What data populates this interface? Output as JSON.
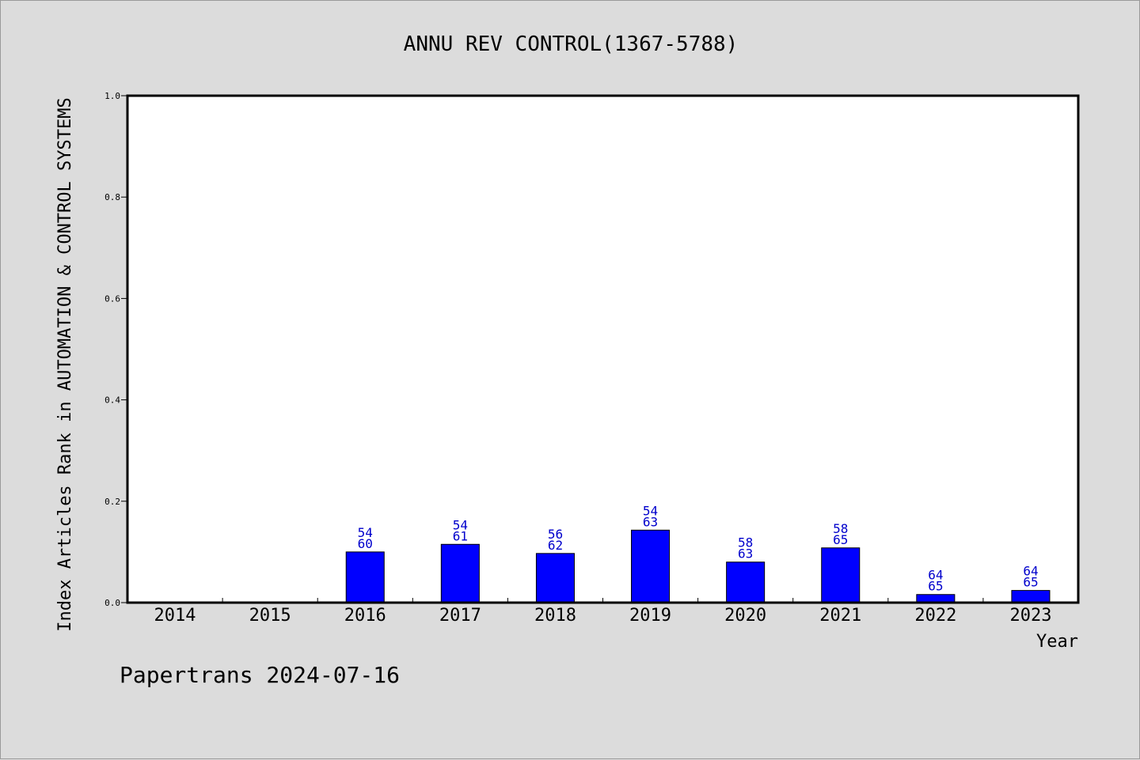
{
  "chart_data": {
    "type": "bar",
    "title": "ANNU REV CONTROL(1367-5788)",
    "xlabel": "Year",
    "ylabel": "Index Articles Rank in AUTOMATION & CONTROL SYSTEMS",
    "ylim": [
      0,
      1.0
    ],
    "yticks": [
      "0.0",
      "0.2",
      "0.4",
      "0.6",
      "0.8",
      "1.0"
    ],
    "categories": [
      "2014",
      "2015",
      "2016",
      "2017",
      "2018",
      "2019",
      "2020",
      "2021",
      "2022",
      "2023"
    ],
    "values": [
      0,
      0,
      0.1,
      0.115,
      0.097,
      0.143,
      0.08,
      0.108,
      0.016,
      0.024
    ],
    "labels_top": [
      "",
      "",
      "54",
      "54",
      "56",
      "54",
      "58",
      "58",
      "64",
      "64"
    ],
    "labels_bottom": [
      "",
      "",
      "60",
      "61",
      "62",
      "63",
      "63",
      "65",
      "65",
      "65"
    ],
    "bar_color": "#0000ff",
    "label_color": "#0000cc",
    "grid": false,
    "legend": "none"
  },
  "footer": "Papertrans 2024-07-16"
}
